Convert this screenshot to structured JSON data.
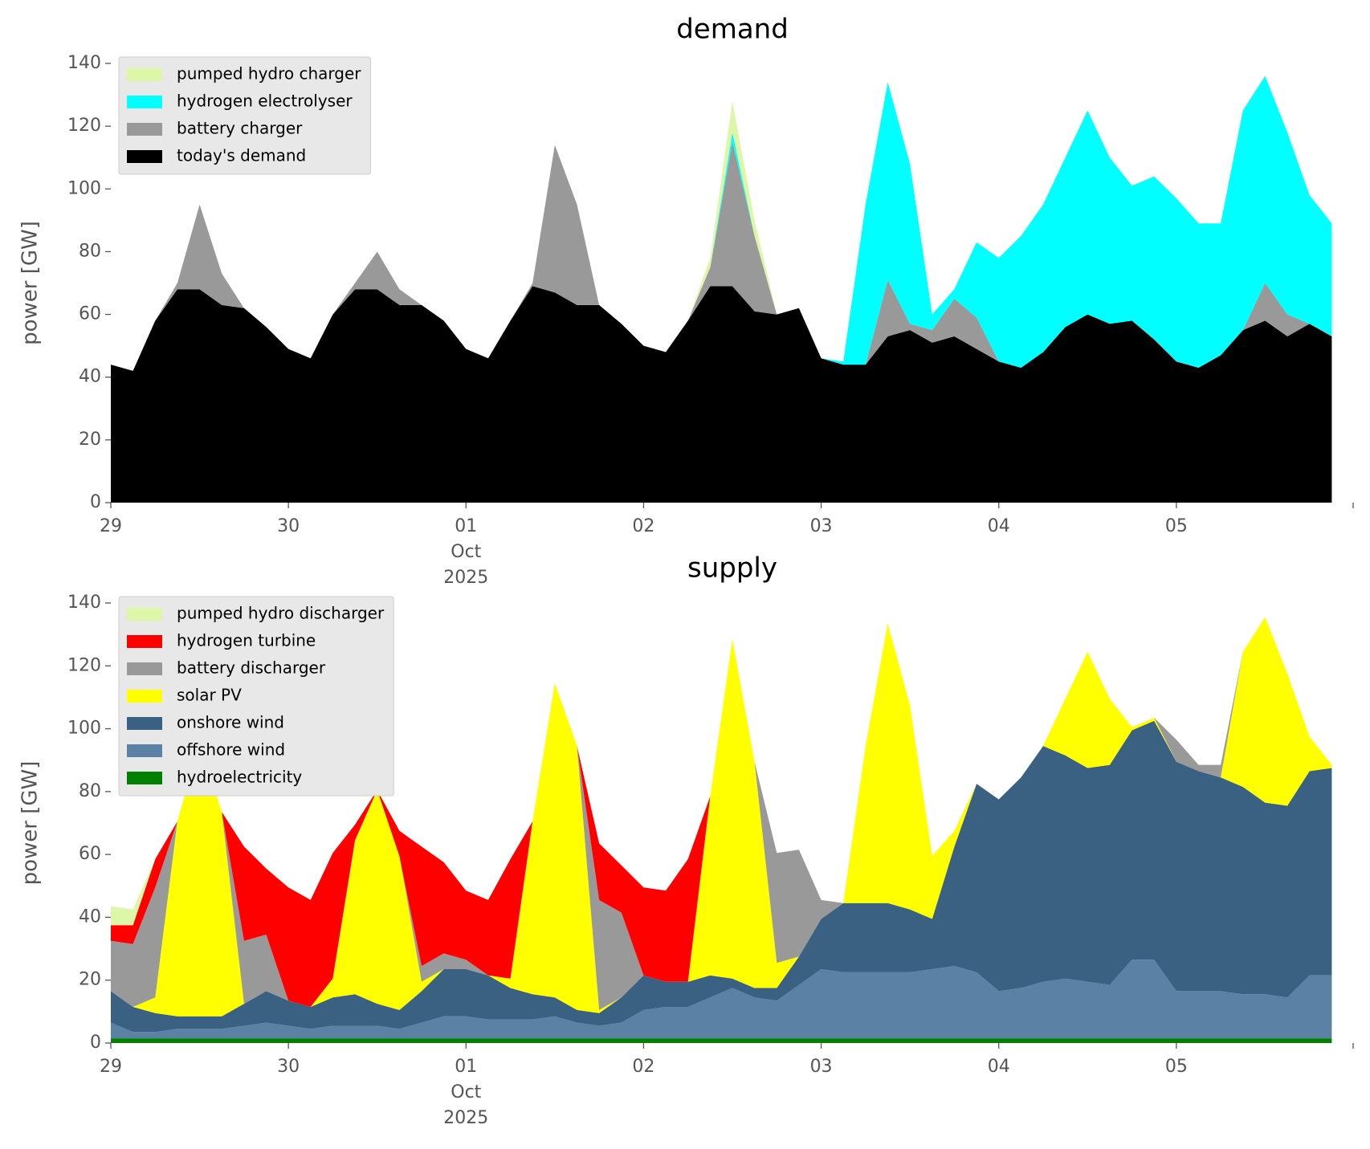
{
  "chart_data": [
    {
      "type": "area",
      "stacked": true,
      "title": "demand",
      "ylabel": "power [GW]",
      "x": [
        "2025-09-29T00:00",
        "2025-09-29T03:00",
        "2025-09-29T06:00",
        "2025-09-29T09:00",
        "2025-09-29T12:00",
        "2025-09-29T15:00",
        "2025-09-29T18:00",
        "2025-09-29T21:00",
        "2025-09-30T00:00",
        "2025-09-30T03:00",
        "2025-09-30T06:00",
        "2025-09-30T09:00",
        "2025-09-30T12:00",
        "2025-09-30T15:00",
        "2025-09-30T18:00",
        "2025-09-30T21:00",
        "2025-10-01T00:00",
        "2025-10-01T03:00",
        "2025-10-01T06:00",
        "2025-10-01T09:00",
        "2025-10-01T12:00",
        "2025-10-01T15:00",
        "2025-10-01T18:00",
        "2025-10-01T21:00",
        "2025-10-02T00:00",
        "2025-10-02T03:00",
        "2025-10-02T06:00",
        "2025-10-02T09:00",
        "2025-10-02T12:00",
        "2025-10-02T15:00",
        "2025-10-02T18:00",
        "2025-10-02T21:00",
        "2025-10-03T00:00",
        "2025-10-03T03:00",
        "2025-10-03T06:00",
        "2025-10-03T09:00",
        "2025-10-03T12:00",
        "2025-10-03T15:00",
        "2025-10-03T18:00",
        "2025-10-03T21:00",
        "2025-10-04T00:00",
        "2025-10-04T03:00",
        "2025-10-04T06:00",
        "2025-10-04T09:00",
        "2025-10-04T12:00",
        "2025-10-04T15:00",
        "2025-10-04T18:00",
        "2025-10-04T21:00",
        "2025-10-05T00:00",
        "2025-10-05T03:00",
        "2025-10-05T06:00",
        "2025-10-05T09:00",
        "2025-10-05T12:00",
        "2025-10-05T15:00",
        "2025-10-05T18:00",
        "2025-10-05T21:00"
      ],
      "series": [
        {
          "name": "pumped hydro charger",
          "color": "#dcf7a8",
          "values": [
            0,
            0,
            0,
            0,
            0,
            0,
            0,
            0,
            0,
            0,
            0,
            0,
            0,
            0,
            0,
            0,
            0,
            0,
            0,
            0,
            0,
            0,
            0,
            0,
            0,
            0,
            0,
            3,
            10,
            5,
            0,
            0,
            0,
            0,
            0,
            0,
            0,
            0,
            0,
            0,
            0,
            0,
            0,
            0,
            0,
            0,
            0,
            0,
            0,
            0,
            0,
            0,
            0,
            0,
            0,
            0
          ]
        },
        {
          "name": "hydrogen electrolyser",
          "color": "#00ffff",
          "values": [
            0,
            0,
            0,
            0,
            0,
            0,
            0,
            0,
            0,
            0,
            0,
            0,
            0,
            0,
            0,
            0,
            0,
            0,
            0,
            0,
            0,
            0,
            0,
            0,
            0,
            0,
            0,
            0,
            3,
            0,
            0,
            0,
            0,
            1,
            51,
            63,
            51,
            5,
            3,
            24,
            33,
            42,
            47,
            54,
            65,
            53,
            43,
            52,
            52,
            46,
            42,
            70,
            66,
            58,
            41,
            36
          ]
        },
        {
          "name": "battery charger",
          "color": "#999999",
          "values": [
            0,
            0,
            0,
            2,
            27,
            10,
            0,
            0,
            0,
            0,
            0,
            2,
            12,
            5,
            0,
            0,
            0,
            0,
            0,
            1,
            47,
            32,
            0,
            0,
            0,
            0,
            0,
            6,
            46,
            24,
            0,
            0,
            0,
            0,
            0,
            18,
            2,
            4,
            12,
            10,
            0,
            0,
            0,
            0,
            0,
            0,
            0,
            0,
            0,
            0,
            0,
            0,
            12,
            7,
            0,
            0
          ]
        },
        {
          "name": "today's demand",
          "color": "#000000",
          "values": [
            44,
            42,
            58,
            68,
            68,
            63,
            62,
            56,
            49,
            46,
            60,
            68,
            68,
            63,
            63,
            58,
            49,
            46,
            58,
            69,
            67,
            63,
            63,
            57,
            50,
            48,
            58,
            69,
            69,
            61,
            60,
            62,
            46,
            44,
            44,
            53,
            55,
            51,
            53,
            49,
            45,
            43,
            48,
            56,
            60,
            57,
            58,
            52,
            45,
            43,
            47,
            55,
            58,
            53,
            57,
            53
          ]
        }
      ],
      "xlim": [
        "2025-09-29T00:00",
        "2025-10-06T00:00"
      ],
      "xticks": [
        {
          "value": "2025-09-29",
          "label": "29"
        },
        {
          "value": "2025-09-30",
          "label": "30"
        },
        {
          "value": "2025-10-01",
          "label": "01"
        },
        {
          "value": "2025-10-02",
          "label": "02"
        },
        {
          "value": "2025-10-03",
          "label": "03"
        },
        {
          "value": "2025-10-04",
          "label": "04"
        },
        {
          "value": "2025-10-05",
          "label": "05"
        }
      ],
      "x_sublabel": [
        "Oct",
        "2025"
      ],
      "ylim": [
        0,
        140
      ],
      "yticks": [
        0,
        20,
        40,
        60,
        80,
        100,
        120,
        140
      ],
      "grid": false,
      "legend": "upper left"
    },
    {
      "type": "area",
      "stacked": true,
      "title": "supply",
      "ylabel": "power [GW]",
      "x": [
        "2025-09-29T00:00",
        "2025-09-29T03:00",
        "2025-09-29T06:00",
        "2025-09-29T09:00",
        "2025-09-29T12:00",
        "2025-09-29T15:00",
        "2025-09-29T18:00",
        "2025-09-29T21:00",
        "2025-09-30T00:00",
        "2025-09-30T03:00",
        "2025-09-30T06:00",
        "2025-09-30T09:00",
        "2025-09-30T12:00",
        "2025-09-30T15:00",
        "2025-09-30T18:00",
        "2025-09-30T21:00",
        "2025-10-01T00:00",
        "2025-10-01T03:00",
        "2025-10-01T06:00",
        "2025-10-01T09:00",
        "2025-10-01T12:00",
        "2025-10-01T15:00",
        "2025-10-01T18:00",
        "2025-10-01T21:00",
        "2025-10-02T00:00",
        "2025-10-02T03:00",
        "2025-10-02T06:00",
        "2025-10-02T09:00",
        "2025-10-02T12:00",
        "2025-10-02T15:00",
        "2025-10-02T18:00",
        "2025-10-02T21:00",
        "2025-10-03T00:00",
        "2025-10-03T03:00",
        "2025-10-03T06:00",
        "2025-10-03T09:00",
        "2025-10-03T12:00",
        "2025-10-03T15:00",
        "2025-10-03T18:00",
        "2025-10-03T21:00",
        "2025-10-04T00:00",
        "2025-10-04T03:00",
        "2025-10-04T06:00",
        "2025-10-04T09:00",
        "2025-10-04T12:00",
        "2025-10-04T15:00",
        "2025-10-04T18:00",
        "2025-10-04T21:00",
        "2025-10-05T00:00",
        "2025-10-05T03:00",
        "2025-10-05T06:00",
        "2025-10-05T09:00",
        "2025-10-05T12:00",
        "2025-10-05T15:00",
        "2025-10-05T18:00",
        "2025-10-05T21:00"
      ],
      "series": [
        {
          "name": "pumped hydro discharger",
          "color": "#dcf7a8",
          "values": [
            6,
            5,
            0,
            0,
            0,
            0,
            0,
            0,
            0,
            0,
            0,
            0,
            0,
            0,
            0,
            0,
            0,
            0,
            0,
            0,
            0,
            0,
            0,
            0,
            0,
            0,
            0,
            0,
            0,
            0,
            0,
            0,
            0,
            0,
            0,
            0,
            0,
            0,
            0,
            0,
            0,
            0,
            0,
            0,
            0,
            0,
            0,
            0,
            0,
            0,
            0,
            0,
            0,
            0,
            0,
            0
          ]
        },
        {
          "name": "hydrogen turbine",
          "color": "#ff0000",
          "values": [
            5,
            6,
            9,
            0,
            0,
            0,
            30,
            21,
            36,
            34,
            40,
            5,
            0,
            8,
            38,
            29,
            22,
            24,
            38,
            0,
            0,
            0,
            18,
            15,
            28,
            29,
            39,
            0,
            0,
            0,
            0,
            0,
            0,
            0,
            0,
            0,
            0,
            0,
            0,
            0,
            0,
            0,
            0,
            0,
            0,
            0,
            0,
            0,
            0,
            0,
            0,
            0,
            0,
            0,
            0,
            0
          ]
        },
        {
          "name": "battery discharger",
          "color": "#999999",
          "values": [
            16,
            20,
            35,
            0,
            0,
            0,
            20,
            18,
            0,
            0,
            0,
            0,
            0,
            0,
            5,
            5,
            3,
            0,
            0,
            0,
            0,
            0,
            35,
            27,
            0,
            0,
            0,
            0,
            0,
            0,
            35,
            34,
            6,
            0,
            0,
            0,
            0,
            0,
            0,
            0,
            0,
            0,
            0,
            0,
            0,
            0,
            0,
            0,
            7,
            2,
            4,
            0,
            0,
            0,
            0,
            0
          ]
        },
        {
          "name": "solar PV",
          "color": "#ffff00",
          "values": [
            0,
            0,
            5,
            62,
            87,
            65,
            0,
            0,
            0,
            0,
            6,
            49,
            68,
            49,
            3,
            0,
            0,
            0,
            3,
            55,
            100,
            84,
            1,
            0,
            0,
            0,
            0,
            57,
            108,
            72,
            8,
            0,
            0,
            0,
            50,
            89,
            65,
            20,
            5,
            0,
            0,
            0,
            0,
            18,
            37,
            21,
            1,
            1,
            0,
            0,
            0,
            43,
            59,
            42,
            11,
            1
          ]
        },
        {
          "name": "onshore wind",
          "color": "#3b6182",
          "values": [
            10,
            8,
            6,
            4,
            4,
            4,
            7,
            10,
            8,
            7,
            9,
            10,
            7,
            6,
            10,
            15,
            15,
            14,
            10,
            8,
            6,
            4,
            4,
            8,
            11,
            8,
            8,
            7,
            3,
            3,
            4,
            9,
            16,
            22,
            22,
            22,
            20,
            16,
            38,
            60,
            61,
            67,
            75,
            71,
            68,
            70,
            73,
            76,
            73,
            70,
            68,
            66,
            61,
            61,
            65,
            66
          ]
        },
        {
          "name": "offshore wind",
          "color": "#5b82a4",
          "values": [
            5,
            2,
            2,
            3,
            3,
            3,
            4,
            5,
            4,
            3,
            4,
            4,
            4,
            3,
            5,
            7,
            7,
            6,
            6,
            6,
            7,
            5,
            4,
            5,
            9,
            10,
            10,
            13,
            16,
            13,
            12,
            17,
            22,
            21,
            21,
            21,
            21,
            22,
            23,
            21,
            15,
            16,
            18,
            19,
            18,
            17,
            25,
            25,
            15,
            15,
            15,
            14,
            14,
            13,
            20,
            20
          ]
        },
        {
          "name": "hydroelectricity",
          "color": "#008000",
          "values": [
            1.5,
            1.5,
            1.5,
            1.5,
            1.5,
            1.5,
            1.5,
            1.5,
            1.5,
            1.5,
            1.5,
            1.5,
            1.5,
            1.5,
            1.5,
            1.5,
            1.5,
            1.5,
            1.5,
            1.5,
            1.5,
            1.5,
            1.5,
            1.5,
            1.5,
            1.5,
            1.5,
            1.5,
            1.5,
            1.5,
            1.5,
            1.5,
            1.5,
            1.5,
            1.5,
            1.5,
            1.5,
            1.5,
            1.5,
            1.5,
            1.5,
            1.5,
            1.5,
            1.5,
            1.5,
            1.5,
            1.5,
            1.5,
            1.5,
            1.5,
            1.5,
            1.5,
            1.5,
            1.5,
            1.5,
            1.5
          ]
        }
      ],
      "xlim": [
        "2025-09-29T00:00",
        "2025-10-06T00:00"
      ],
      "xticks": [
        {
          "value": "2025-09-29",
          "label": "29"
        },
        {
          "value": "2025-09-30",
          "label": "30"
        },
        {
          "value": "2025-10-01",
          "label": "01"
        },
        {
          "value": "2025-10-02",
          "label": "02"
        },
        {
          "value": "2025-10-03",
          "label": "03"
        },
        {
          "value": "2025-10-04",
          "label": "04"
        },
        {
          "value": "2025-10-05",
          "label": "05"
        }
      ],
      "x_sublabel": [
        "Oct",
        "2025"
      ],
      "ylim": [
        0,
        140
      ],
      "yticks": [
        0,
        20,
        40,
        60,
        80,
        100,
        120,
        140
      ],
      "grid": false,
      "legend": "upper left"
    }
  ]
}
